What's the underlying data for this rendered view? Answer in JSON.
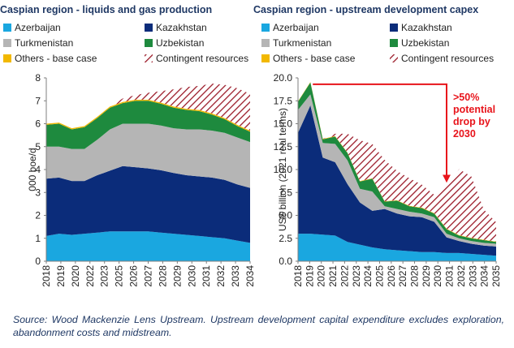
{
  "source_note": "Source: Wood Mackenzie Lens Upstream. Upstream development capital expenditure excludes exploration, abandonment costs and midstream.",
  "colors": {
    "Azerbaijan": "#1aa7e0",
    "Kazakhstan": "#0b2c7a",
    "Turkmenistan": "#b5b5b5",
    "Uzbekistan": "#1e8a3e",
    "Others - base case": "#f2b800",
    "Contingent resources": "#9b1a28",
    "annotation": "#e8141b"
  },
  "chart_data": [
    {
      "type": "area",
      "stacked": true,
      "title": "Caspian region - liquids and gas production",
      "xlabel": "",
      "ylabel": "000 boe/d",
      "ylim": [
        0,
        8
      ],
      "yticks": [
        "0",
        "1",
        "2",
        "3",
        "4",
        "5",
        "6",
        "7",
        "8"
      ],
      "x": [
        "2018",
        "2019",
        "2020",
        "2021",
        "2022",
        "2023",
        "2024",
        "2025",
        "2026",
        "2027",
        "2028",
        "2029",
        "2030",
        "2031",
        "2032",
        "2033",
        "2034"
      ],
      "x_tick_labels": [
        "2018",
        "2019",
        "2020",
        "2022",
        "2023",
        "2025",
        "2026",
        "2027",
        "2028",
        "2029",
        "2030",
        "2031",
        "2032",
        "2033",
        "2034"
      ],
      "legend": [
        "Azerbaijan",
        "Kazakhstan",
        "Turkmenistan",
        "Uzbekistan",
        "Others - base case",
        "Contingent resources"
      ],
      "series": [
        {
          "name": "Azerbaijan",
          "values": [
            1.1,
            1.2,
            1.15,
            1.2,
            1.25,
            1.3,
            1.3,
            1.3,
            1.3,
            1.25,
            1.2,
            1.15,
            1.1,
            1.05,
            1.0,
            0.9,
            0.8
          ]
        },
        {
          "name": "Kazakhstan",
          "values": [
            2.5,
            2.45,
            2.35,
            2.3,
            2.5,
            2.65,
            2.85,
            2.8,
            2.75,
            2.72,
            2.65,
            2.6,
            2.6,
            2.6,
            2.55,
            2.45,
            2.4
          ]
        },
        {
          "name": "Turkmenistan",
          "values": [
            1.4,
            1.35,
            1.4,
            1.4,
            1.55,
            1.8,
            1.85,
            1.9,
            1.95,
            1.95,
            1.95,
            2.0,
            2.05,
            2.05,
            2.05,
            2.05,
            2.0
          ]
        },
        {
          "name": "Uzbekistan",
          "values": [
            0.95,
            1.0,
            0.85,
            0.95,
            0.95,
            0.95,
            0.9,
            1.0,
            1.0,
            0.95,
            0.9,
            0.85,
            0.8,
            0.7,
            0.6,
            0.5,
            0.45
          ]
        },
        {
          "name": "Others - base case",
          "values": [
            0.05,
            0.05,
            0.05,
            0.05,
            0.05,
            0.05,
            0.05,
            0.05,
            0.05,
            0.05,
            0.05,
            0.05,
            0.05,
            0.05,
            0.05,
            0.05,
            0.05
          ]
        },
        {
          "name": "Contingent resources",
          "values": [
            0,
            0,
            0,
            0,
            0,
            0,
            0.15,
            0.2,
            0.3,
            0.5,
            0.75,
            0.95,
            1.05,
            1.3,
            1.45,
            1.6,
            1.6
          ]
        }
      ]
    },
    {
      "type": "area",
      "stacked": true,
      "title": "Caspian region - upstream development capex",
      "xlabel": "",
      "ylabel": "US$ billion (2021 real terms)",
      "ylim": [
        0,
        20
      ],
      "yticks": [
        "0.0",
        "2.5",
        "5.0",
        "7.5",
        "10.0",
        "12.5",
        "15.0",
        "17.5",
        "20.0"
      ],
      "x": [
        "2018",
        "2019",
        "2020",
        "2021",
        "2022",
        "2023",
        "2024",
        "2025",
        "2026",
        "2027",
        "2028",
        "2029",
        "2030",
        "2031",
        "2032",
        "2033",
        "2034"
      ],
      "x_tick_labels": [
        "2018",
        "2019",
        "2020",
        "2021",
        "2022",
        "2023",
        "2024",
        "2025",
        "2026",
        "2027",
        "2028",
        "2029",
        "2030",
        "2031",
        "2032",
        "2033",
        "2034",
        "2035"
      ],
      "legend": [
        "Azerbaijan",
        "Kazakhstan",
        "Turkmenistan",
        "Uzbekistan",
        "Others - base case",
        "Contingent resources"
      ],
      "series": [
        {
          "name": "Azerbaijan",
          "values": [
            3.0,
            3.0,
            2.9,
            2.8,
            2.1,
            1.8,
            1.5,
            1.3,
            1.2,
            1.1,
            1.0,
            1.0,
            0.9,
            0.9,
            0.8,
            0.7,
            0.6
          ]
        },
        {
          "name": "Kazakhstan",
          "values": [
            11.0,
            14.0,
            8.4,
            8.0,
            6.3,
            4.6,
            4.0,
            4.4,
            4.0,
            3.8,
            3.8,
            3.3,
            1.7,
            1.3,
            1.1,
            1.0,
            1.0
          ]
        },
        {
          "name": "Turkmenistan",
          "values": [
            2.5,
            1.2,
            1.6,
            2.0,
            2.6,
            1.5,
            2.1,
            0.3,
            0.5,
            0.5,
            0.4,
            0.5,
            0.4,
            0.3,
            0.3,
            0.3,
            0.3
          ]
        },
        {
          "name": "Uzbekistan",
          "values": [
            0.9,
            1.3,
            0.4,
            0.8,
            0.8,
            0.8,
            1.4,
            0.5,
            0.9,
            0.6,
            0.6,
            0.4,
            0.5,
            0.3,
            0.3,
            0.3,
            0.2
          ]
        },
        {
          "name": "Others - base case",
          "values": [
            0.05,
            0.05,
            0.05,
            0.05,
            0.05,
            0.05,
            0.05,
            0.05,
            0.05,
            0.05,
            0.05,
            0.05,
            0.05,
            0.05,
            0.05,
            0.05,
            0.05
          ]
        },
        {
          "name": "Contingent resources",
          "values": [
            0,
            0,
            0,
            0.25,
            2.05,
            4.45,
            3.75,
            4.5,
            3.2,
            3.0,
            2.5,
            2.0,
            4.6,
            7.2,
            6.7,
            3.3,
            2.1
          ]
        }
      ],
      "annotation": {
        "lines": [
          ">50%",
          "potential",
          "drop by",
          "2030"
        ],
        "from_x": "2019",
        "to_x": "2030",
        "level": 19.3
      }
    }
  ]
}
